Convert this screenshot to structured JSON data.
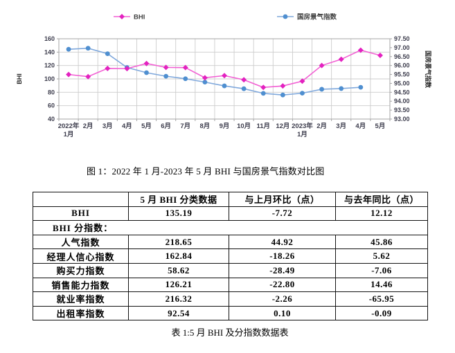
{
  "figure_caption": "图 1：2022 年 1 月-2023 年 5 月 BHI 与国房景气指数对比图",
  "table_caption": "表 1:5 月 BHI 及分指数数据表",
  "chart_data": {
    "type": "line",
    "categories": [
      "2022年\n1月",
      "2月",
      "3月",
      "4月",
      "5月",
      "6月",
      "7月",
      "8月",
      "9月",
      "10月",
      "11月",
      "12月",
      "2023年\n1月",
      "2月",
      "3月",
      "4月",
      "5月"
    ],
    "series": [
      {
        "name": "国房景气指数",
        "axis": "right",
        "marker": "circle",
        "line_color": "#7fa8dc",
        "marker_color": "#4f8fd0",
        "values": [
          96.91,
          96.97,
          96.66,
          95.89,
          95.6,
          95.4,
          95.26,
          95.07,
          94.86,
          94.7,
          94.44,
          94.35,
          94.45,
          94.67,
          94.71,
          94.78,
          null
        ]
      },
      {
        "name": "BHI",
        "axis": "left",
        "marker": "diamond",
        "line_color": "#f25fd3",
        "marker_color": "#e322c0",
        "values": [
          106.6,
          103.4,
          115.7,
          115.4,
          123.07,
          117.2,
          116.9,
          101.7,
          104.9,
          98.7,
          87.3,
          89.5,
          96.6,
          120.0,
          129.3,
          142.91,
          135.19
        ]
      }
    ],
    "legend": [
      {
        "label": "BHI"
      },
      {
        "label": "国房景气指数"
      }
    ],
    "left_axis": {
      "title": "BHI",
      "min": 40,
      "max": 160,
      "step": 20
    },
    "right_axis": {
      "title": "国房景气指数",
      "min": 93.0,
      "max": 97.5,
      "step": 0.5
    },
    "grid": true,
    "legend_position": "top"
  },
  "table": {
    "headers": [
      "",
      "5 月 BHI 分类数据",
      "与上月环比（点）",
      "与去年同比（点）"
    ],
    "rows": [
      {
        "type": "data",
        "cells": [
          "BHI",
          "135.19",
          "-7.72",
          "12.12"
        ]
      },
      {
        "type": "section",
        "cells": [
          "BHI 分指数："
        ]
      },
      {
        "type": "data",
        "cells": [
          "人气指数",
          "218.65",
          "44.92",
          "45.86"
        ]
      },
      {
        "type": "data",
        "cells": [
          "经理人信心指数",
          "162.84",
          "-18.26",
          "5.62"
        ]
      },
      {
        "type": "data",
        "cells": [
          "购买力指数",
          "58.62",
          "-28.49",
          "-7.06"
        ]
      },
      {
        "type": "data",
        "cells": [
          "销售能力指数",
          "126.21",
          "-22.80",
          "14.46"
        ]
      },
      {
        "type": "data",
        "cells": [
          "就业率指数",
          "216.32",
          "-2.26",
          "-65.95"
        ]
      },
      {
        "type": "data",
        "cells": [
          "出租率指数",
          "92.54",
          "0.10",
          "-0.09"
        ]
      }
    ]
  }
}
